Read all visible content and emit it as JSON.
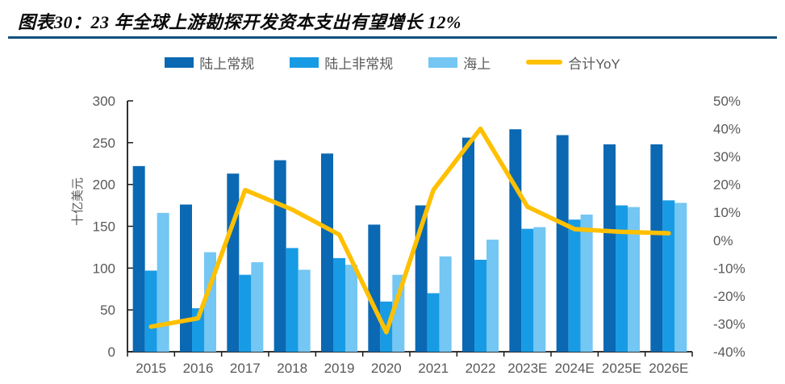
{
  "header": {
    "title": "图表30：23 年全球上游勘探开发资本支出有望增长 12%"
  },
  "chart_data": {
    "type": "combo-bar-line",
    "title": "23 年全球上游勘探开发资本支出有望增长 12%",
    "categories": [
      "2015",
      "2016",
      "2017",
      "2018",
      "2019",
      "2020",
      "2021",
      "2022",
      "2023E",
      "2024E",
      "2025E",
      "2026E"
    ],
    "series": [
      {
        "name": "陆上常规",
        "type": "bar",
        "axis": "left",
        "color": "#0b68b2",
        "values": [
          222,
          176,
          213,
          229,
          237,
          152,
          175,
          256,
          266,
          259,
          248,
          248
        ]
      },
      {
        "name": "陆上非常规",
        "type": "bar",
        "axis": "left",
        "color": "#189be5",
        "values": [
          97,
          52,
          92,
          124,
          112,
          60,
          70,
          110,
          147,
          158,
          175,
          181
        ]
      },
      {
        "name": "海上",
        "type": "bar",
        "axis": "left",
        "color": "#74c6f3",
        "values": [
          166,
          119,
          107,
          98,
          104,
          92,
          114,
          134,
          149,
          164,
          173,
          178
        ]
      },
      {
        "name": "合计YoY",
        "type": "line",
        "axis": "right",
        "color": "#ffc000",
        "values": [
          -31,
          -28,
          18,
          11,
          2,
          -33,
          18,
          40,
          12,
          4,
          3,
          2.5
        ]
      }
    ],
    "left_axis": {
      "title": "十亿美元",
      "min": 0,
      "max": 300,
      "step": 50,
      "tick_labels": [
        "0",
        "50",
        "100",
        "150",
        "200",
        "250",
        "300"
      ]
    },
    "right_axis": {
      "min": -40,
      "max": 50,
      "step": 10,
      "unit": "%",
      "tick_labels": [
        "-40%",
        "-30%",
        "-20%",
        "-10%",
        "0%",
        "10%",
        "20%",
        "30%",
        "40%",
        "50%"
      ]
    },
    "grid": false,
    "legend_position": "top",
    "colors": {
      "axis_line": "#1a1a1a",
      "tick_text": "#595959",
      "title_text": "#0a0a0a",
      "title_rule": "#11527c",
      "background": "#ffffff"
    }
  }
}
